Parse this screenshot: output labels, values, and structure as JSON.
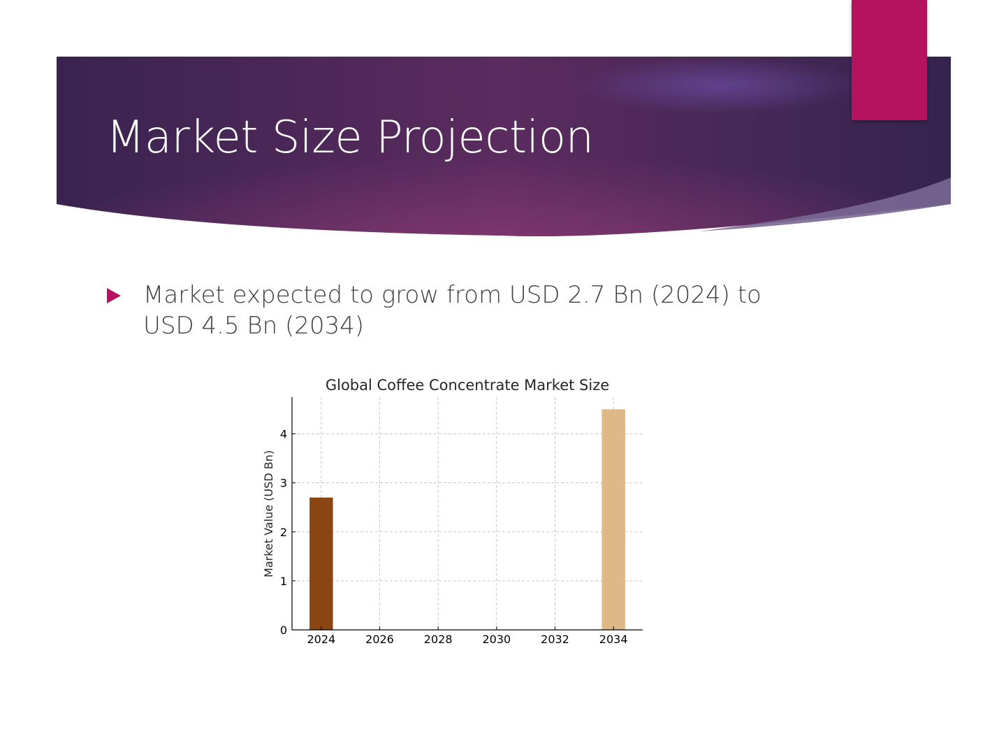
{
  "slide": {
    "title": "Market Size Projection",
    "bullet": "Market expected to grow from USD 2.7 Bn (2024) to USD 4.5 Bn (2034)",
    "colors": {
      "banner_dark": "#3a2350",
      "banner_mid": "#6e3062",
      "accent_tab": "#b5135f",
      "bullet_arrow": "#b5135f",
      "text": "#404040"
    }
  },
  "chart_data": {
    "type": "bar",
    "title": "Global Coffee Concentrate Market Size",
    "xlabel": "",
    "ylabel": "Market Value (USD Bn)",
    "x": [
      2024,
      2034
    ],
    "values": [
      2.7,
      4.5
    ],
    "bar_colors": [
      "#8b4513",
      "#deb887"
    ],
    "xlim": [
      2023.0,
      2035.0
    ],
    "ylim": [
      0,
      4.75
    ],
    "xticks": [
      2024,
      2026,
      2028,
      2030,
      2032,
      2034
    ],
    "yticks": [
      0,
      1,
      2,
      3,
      4
    ],
    "grid": true,
    "legend": "none"
  }
}
